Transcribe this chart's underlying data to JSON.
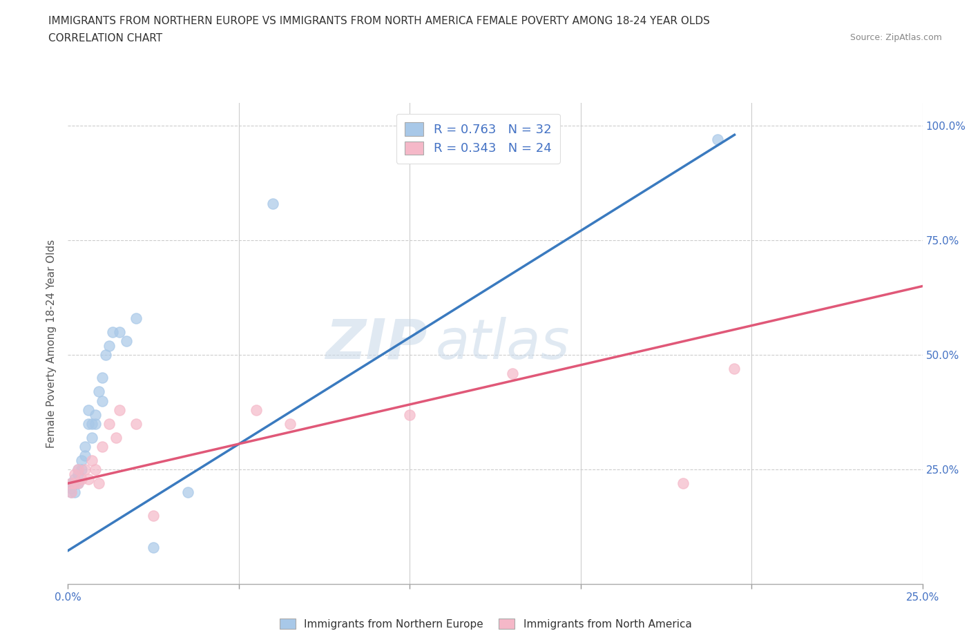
{
  "title1": "IMMIGRANTS FROM NORTHERN EUROPE VS IMMIGRANTS FROM NORTH AMERICA FEMALE POVERTY AMONG 18-24 YEAR OLDS",
  "title2": "CORRELATION CHART",
  "source": "Source: ZipAtlas.com",
  "ylabel": "Female Poverty Among 18-24 Year Olds",
  "xlim": [
    0.0,
    0.25
  ],
  "ylim": [
    0.0,
    1.05
  ],
  "legend_r1": "R = 0.763   N = 32",
  "legend_r2": "R = 0.343   N = 24",
  "blue_scatter_color": "#a8c8e8",
  "pink_scatter_color": "#f5b8c8",
  "blue_line_color": "#3a7abf",
  "pink_line_color": "#e05878",
  "watermark_zip": "ZIP",
  "watermark_atlas": "atlas",
  "series1_x": [
    0.001,
    0.001,
    0.001,
    0.002,
    0.002,
    0.002,
    0.003,
    0.003,
    0.003,
    0.004,
    0.004,
    0.005,
    0.005,
    0.006,
    0.006,
    0.007,
    0.007,
    0.008,
    0.008,
    0.009,
    0.01,
    0.01,
    0.011,
    0.012,
    0.013,
    0.015,
    0.017,
    0.02,
    0.025,
    0.035,
    0.06,
    0.19
  ],
  "series1_y": [
    0.22,
    0.21,
    0.2,
    0.23,
    0.22,
    0.2,
    0.25,
    0.24,
    0.22,
    0.27,
    0.25,
    0.3,
    0.28,
    0.35,
    0.38,
    0.35,
    0.32,
    0.37,
    0.35,
    0.42,
    0.45,
    0.4,
    0.5,
    0.52,
    0.55,
    0.55,
    0.53,
    0.58,
    0.08,
    0.2,
    0.83,
    0.97
  ],
  "series2_x": [
    0.001,
    0.001,
    0.002,
    0.002,
    0.003,
    0.003,
    0.004,
    0.005,
    0.006,
    0.007,
    0.008,
    0.009,
    0.01,
    0.012,
    0.014,
    0.015,
    0.02,
    0.025,
    0.055,
    0.065,
    0.1,
    0.13,
    0.18,
    0.195
  ],
  "series2_y": [
    0.22,
    0.2,
    0.24,
    0.22,
    0.25,
    0.22,
    0.23,
    0.25,
    0.23,
    0.27,
    0.25,
    0.22,
    0.3,
    0.35,
    0.32,
    0.38,
    0.35,
    0.15,
    0.38,
    0.35,
    0.37,
    0.46,
    0.22,
    0.47
  ],
  "blue_trend_x": [
    -0.005,
    0.195
  ],
  "blue_trend_y": [
    0.05,
    0.98
  ],
  "pink_trend_x": [
    0.0,
    0.25
  ],
  "pink_trend_y": [
    0.22,
    0.65
  ]
}
